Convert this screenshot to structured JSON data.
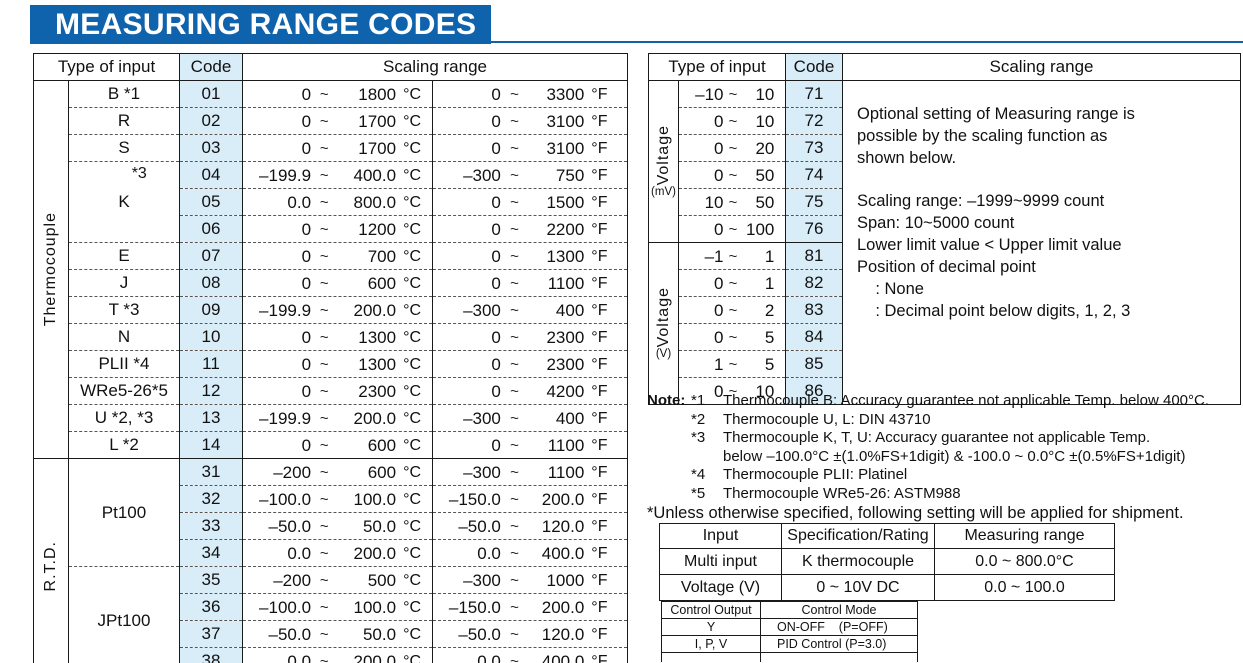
{
  "page_title": "MEASURING RANGE CODES",
  "colors": {
    "accent_blue": "#0f63ac",
    "code_bg": "#d9edf9"
  },
  "tilde": "~",
  "left_table": {
    "headers": {
      "type_of_input": "Type of input",
      "code": "Code",
      "scaling_range": "Scaling range"
    },
    "groups": [
      {
        "label": "Thermocouple",
        "blocks": [
          {
            "label": "B *1",
            "rows": [
              {
                "code": "01",
                "c": [
                  "0",
                  "1800",
                  "°C"
                ],
                "f": [
                  "0",
                  "3300",
                  "°F"
                ]
              }
            ]
          },
          {
            "label": "R",
            "rows": [
              {
                "code": "02",
                "c": [
                  "0",
                  "1700",
                  "°C"
                ],
                "f": [
                  "0",
                  "3100",
                  "°F"
                ]
              }
            ]
          },
          {
            "label": "S",
            "rows": [
              {
                "code": "03",
                "c": [
                  "0",
                  "1700",
                  "°C"
                ],
                "f": [
                  "0",
                  "3100",
                  "°F"
                ]
              }
            ]
          },
          {
            "label": "K",
            "note": "*3",
            "rows": [
              {
                "code": "04",
                "c": [
                  "–199.9",
                  "400.0",
                  "°C"
                ],
                "f": [
                  "–300",
                  "750",
                  "°F"
                ]
              },
              {
                "code": "05",
                "c": [
                  "0.0",
                  "800.0",
                  "°C"
                ],
                "f": [
                  "0",
                  "1500",
                  "°F"
                ]
              },
              {
                "code": "06",
                "c": [
                  "0",
                  "1200",
                  "°C"
                ],
                "f": [
                  "0",
                  "2200",
                  "°F"
                ]
              }
            ]
          },
          {
            "label": "E",
            "rows": [
              {
                "code": "07",
                "c": [
                  "0",
                  "700",
                  "°C"
                ],
                "f": [
                  "0",
                  "1300",
                  "°F"
                ]
              }
            ]
          },
          {
            "label": "J",
            "rows": [
              {
                "code": "08",
                "c": [
                  "0",
                  "600",
                  "°C"
                ],
                "f": [
                  "0",
                  "1100",
                  "°F"
                ]
              }
            ]
          },
          {
            "label": "T *3",
            "rows": [
              {
                "code": "09",
                "c": [
                  "–199.9",
                  "200.0",
                  "°C"
                ],
                "f": [
                  "–300",
                  "400",
                  "°F"
                ]
              }
            ]
          },
          {
            "label": "N",
            "rows": [
              {
                "code": "10",
                "c": [
                  "0",
                  "1300",
                  "°C"
                ],
                "f": [
                  "0",
                  "2300",
                  "°F"
                ]
              }
            ]
          },
          {
            "label": "PLII *4",
            "rows": [
              {
                "code": "11",
                "c": [
                  "0",
                  "1300",
                  "°C"
                ],
                "f": [
                  "0",
                  "2300",
                  "°F"
                ]
              }
            ]
          },
          {
            "label": "WRe5-26*5",
            "rows": [
              {
                "code": "12",
                "c": [
                  "0",
                  "2300",
                  "°C"
                ],
                "f": [
                  "0",
                  "4200",
                  "°F"
                ]
              }
            ]
          },
          {
            "label": "U *2, *3",
            "rows": [
              {
                "code": "13",
                "c": [
                  "–199.9",
                  "200.0",
                  "°C"
                ],
                "f": [
                  "–300",
                  "400",
                  "°F"
                ]
              }
            ]
          },
          {
            "label": "L *2",
            "rows": [
              {
                "code": "14",
                "c": [
                  "0",
                  "600",
                  "°C"
                ],
                "f": [
                  "0",
                  "1100",
                  "°F"
                ]
              }
            ]
          }
        ]
      },
      {
        "label": "R.T.D.",
        "blocks": [
          {
            "label": "Pt100",
            "rows": [
              {
                "code": "31",
                "c": [
                  "–200",
                  "600",
                  "°C"
                ],
                "f": [
                  "–300",
                  "1100",
                  "°F"
                ]
              },
              {
                "code": "32",
                "c": [
                  "–100.0",
                  "100.0",
                  "°C"
                ],
                "f": [
                  "–150.0",
                  "200.0",
                  "°F"
                ]
              },
              {
                "code": "33",
                "c": [
                  "–50.0",
                  "50.0",
                  "°C"
                ],
                "f": [
                  "–50.0",
                  "120.0",
                  "°F"
                ]
              },
              {
                "code": "34",
                "c": [
                  "0.0",
                  "200.0",
                  "°C"
                ],
                "f": [
                  "0.0",
                  "400.0",
                  "°F"
                ]
              }
            ]
          },
          {
            "label": "JPt100",
            "rows": [
              {
                "code": "35",
                "c": [
                  "–200",
                  "500",
                  "°C"
                ],
                "f": [
                  "–300",
                  "1000",
                  "°F"
                ]
              },
              {
                "code": "36",
                "c": [
                  "–100.0",
                  "100.0",
                  "°C"
                ],
                "f": [
                  "–150.0",
                  "200.0",
                  "°F"
                ]
              },
              {
                "code": "37",
                "c": [
                  "–50.0",
                  "50.0",
                  "°C"
                ],
                "f": [
                  "–50.0",
                  "120.0",
                  "°F"
                ]
              },
              {
                "code": "38",
                "c": [
                  "0.0",
                  "200.0",
                  "°C"
                ],
                "f": [
                  "0.0",
                  "400.0",
                  "°F"
                ]
              }
            ]
          }
        ]
      }
    ]
  },
  "right_table": {
    "headers": {
      "type_of_input": "Type of input",
      "code": "Code",
      "scaling_range": "Scaling range"
    },
    "groups": [
      {
        "label": "Voltage",
        "sub": "(mV)",
        "rows": [
          {
            "range": [
              "–10",
              "10"
            ],
            "code": "71"
          },
          {
            "range": [
              "0",
              "10"
            ],
            "code": "72"
          },
          {
            "range": [
              "0",
              "20"
            ],
            "code": "73"
          },
          {
            "range": [
              "0",
              "50"
            ],
            "code": "74"
          },
          {
            "range": [
              "10",
              "50"
            ],
            "code": "75"
          },
          {
            "range": [
              "0",
              "100"
            ],
            "code": "76"
          }
        ]
      },
      {
        "label": "Voltage",
        "sub": "(V)",
        "rows": [
          {
            "range": [
              "–1",
              "1"
            ],
            "code": "81"
          },
          {
            "range": [
              "0",
              "1"
            ],
            "code": "82"
          },
          {
            "range": [
              "0",
              "2"
            ],
            "code": "83"
          },
          {
            "range": [
              "0",
              "5"
            ],
            "code": "84"
          },
          {
            "range": [
              "1",
              "5"
            ],
            "code": "85"
          },
          {
            "range": [
              "0",
              "10"
            ],
            "code": "86"
          }
        ]
      }
    ],
    "scaling_note": {
      "para": [
        "Optional setting of Measuring range is",
        "possible by the scaling function as",
        "shown below."
      ],
      "lines": [
        "Scaling range: –1999~9999 count",
        "Span: 10~5000 count",
        "Lower limit value < Upper limit value",
        "Position of decimal point",
        "    : None",
        "    : Decimal point below digits, 1, 2, 3"
      ]
    }
  },
  "note": {
    "label": "Note:",
    "items": [
      {
        "star": "*1",
        "text": "Thermocouple B: Accuracy guarantee not applicable Temp. below 400°C."
      },
      {
        "star": "*2",
        "text": "Thermocouple U, L: DIN 43710"
      },
      {
        "star": "*3",
        "text": "Thermocouple K, T, U: Accuracy guarantee not applicable Temp.",
        "text2": "below –100.0°C ±(1.0%FS+1digit) & -100.0 ~ 0.0°C ±(0.5%FS+1digit)"
      },
      {
        "star": "*4",
        "text": "Thermocouple PLII: Platinel"
      },
      {
        "star": "*5",
        "text": "Thermocouple WRe5-26: ASTM988"
      }
    ]
  },
  "shipment": {
    "intro": "*Unless otherwise specified, following setting will be applied for shipment.",
    "headers": [
      "Input",
      "Specification/Rating",
      "Measuring range"
    ],
    "rows": [
      [
        "Multi input",
        "K thermocouple",
        "0.0 ~ 800.0°C"
      ],
      [
        "Voltage (V)",
        "0 ~ 10V DC",
        "0.0 ~ 100.0"
      ]
    ]
  },
  "control": {
    "headers": [
      "Control Output",
      "Control Mode"
    ],
    "rows": [
      [
        "Y",
        "ON-OFF    (P=OFF)"
      ],
      [
        "I, P, V",
        "PID Control (P=3.0)"
      ]
    ]
  }
}
